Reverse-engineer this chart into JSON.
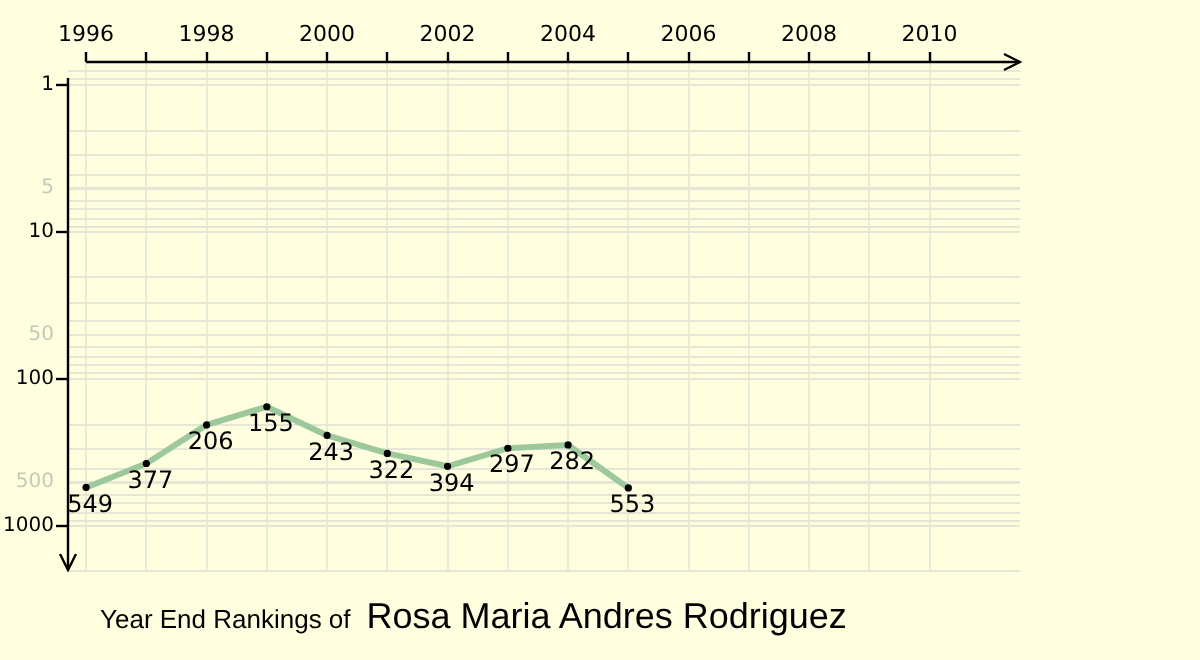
{
  "chart_data": {
    "type": "line",
    "title": "Year End Rankings of",
    "subtitle": "Rosa Maria Andres Rodriguez",
    "x": [
      1996,
      1997,
      1998,
      1999,
      2000,
      2001,
      2002,
      2003,
      2004,
      2005
    ],
    "series": [
      {
        "color": "#9cc89c",
        "values": [
          549,
          377,
          206,
          155,
          243,
          322,
          394,
          297,
          282,
          553
        ]
      }
    ],
    "xlim": [
      1995.7,
      2011.5
    ],
    "xticks": [
      1996,
      {
        "value": 1997,
        "label": null
      },
      1998,
      {
        "value": 1999,
        "label": null
      },
      2000,
      {
        "value": 2001,
        "label": null
      },
      2002,
      {
        "value": 2003,
        "label": null
      },
      2004,
      {
        "value": 2005,
        "label": null
      },
      2006,
      {
        "value": 2007,
        "label": null
      },
      2008,
      {
        "value": 2009,
        "label": null
      },
      2010
    ],
    "ylim": [
      2000,
      0.73
    ],
    "yticks": [
      1,
      5,
      10,
      50,
      100,
      500,
      1000
    ],
    "log": "y",
    "grid": true,
    "data_labels": true,
    "marker": "circle",
    "line_style": "solid"
  }
}
